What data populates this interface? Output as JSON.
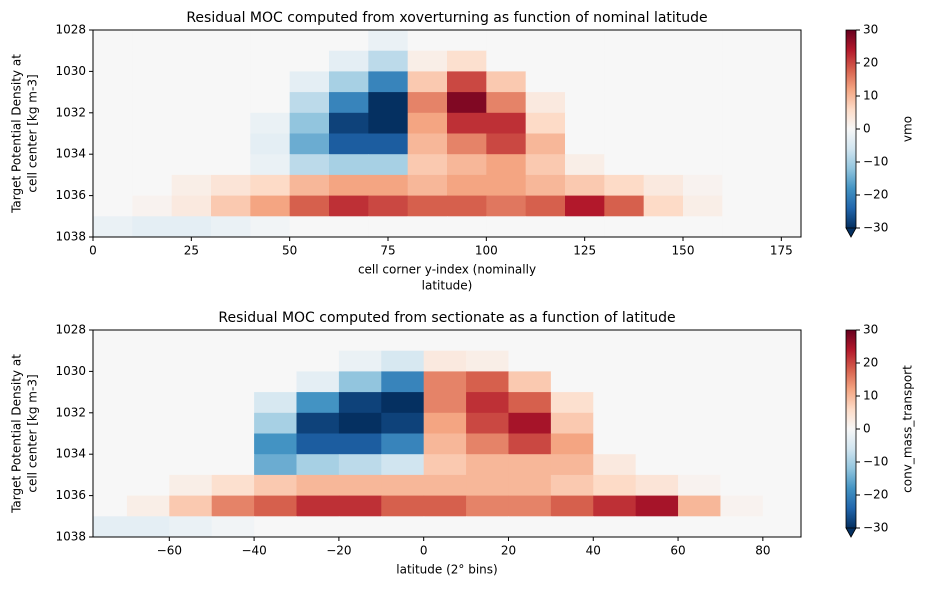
{
  "chart_data": [
    {
      "type": "heatmap",
      "title": "Residual MOC computed from xoverturning as function of nominal latitude",
      "xlabel": [
        "cell corner y-index (nominally",
        "latitude)"
      ],
      "ylabel": [
        "Target Potential Density at",
        "cell center [kg m-3]"
      ],
      "x": [
        5,
        15,
        25,
        35,
        45,
        55,
        65,
        75,
        85,
        95,
        105,
        115,
        125,
        135,
        145,
        155,
        165,
        175
      ],
      "y": [
        1028.5,
        1029.5,
        1030.5,
        1031.5,
        1032.5,
        1033.5,
        1034.5,
        1035.5,
        1036.5,
        1037.5
      ],
      "z": [
        [
          0,
          0,
          0,
          0,
          0,
          0,
          0,
          -2,
          0,
          0,
          0,
          0,
          0,
          0,
          0,
          0,
          0,
          0
        ],
        [
          0,
          0,
          0,
          0,
          0,
          0,
          -3,
          -8,
          2,
          5,
          0,
          0,
          0,
          0,
          0,
          0,
          0,
          0
        ],
        [
          0,
          0,
          0,
          0,
          0,
          -3,
          -10,
          -20,
          8,
          20,
          8,
          0,
          0,
          0,
          0,
          0,
          0,
          0
        ],
        [
          0,
          0,
          0,
          0,
          0,
          -8,
          -20,
          -30,
          15,
          28,
          15,
          3,
          0,
          0,
          0,
          0,
          0,
          0
        ],
        [
          0,
          0,
          0,
          0,
          -2,
          -12,
          -28,
          -30,
          12,
          22,
          22,
          6,
          0,
          0,
          0,
          0,
          0,
          0
        ],
        [
          0,
          0,
          0,
          0,
          -3,
          -15,
          -25,
          -25,
          10,
          15,
          20,
          10,
          0,
          0,
          0,
          0,
          0,
          0
        ],
        [
          0,
          0,
          0,
          0,
          -2,
          -8,
          -10,
          -10,
          8,
          10,
          12,
          8,
          2,
          0,
          0,
          0,
          0,
          0
        ],
        [
          0,
          0,
          2,
          4,
          6,
          10,
          12,
          12,
          10,
          12,
          12,
          10,
          8,
          6,
          3,
          1,
          0,
          0
        ],
        [
          0,
          1,
          3,
          8,
          12,
          18,
          22,
          20,
          18,
          18,
          16,
          18,
          24,
          18,
          6,
          2,
          0,
          0
        ],
        [
          -2,
          -3,
          -3,
          -2,
          -1,
          0,
          0,
          0,
          0,
          0,
          0,
          0,
          0,
          0,
          0,
          0,
          0,
          0
        ]
      ],
      "xlim": [
        0,
        180
      ],
      "xticks": [
        0,
        25,
        50,
        75,
        100,
        125,
        150,
        175
      ],
      "ylim": [
        1038,
        1028
      ],
      "yticks": [
        1028,
        1030,
        1032,
        1034,
        1036,
        1038
      ],
      "clim": [
        -30,
        30
      ],
      "cticks": [
        {
          "value": -30,
          "label": "−30"
        },
        {
          "value": -20,
          "label": "−20"
        },
        {
          "value": -10,
          "label": "−10"
        },
        0,
        10,
        20,
        30
      ],
      "clabel": "vmo",
      "cmap": [
        "#053061",
        "#2166ac",
        "#4393c3",
        "#92c5de",
        "#d1e5f0",
        "#f7f7f7",
        "#fddbc7",
        "#f4a582",
        "#d6604d",
        "#b2182b",
        "#67001f"
      ]
    },
    {
      "type": "heatmap",
      "title": "Residual MOC computed from sectionate as a function of latitude",
      "xlabel": [
        "latitude (2° bins)"
      ],
      "ylabel": [
        "Target Potential Density at",
        "cell center [kg m-3]"
      ],
      "x": [
        -75,
        -65,
        -55,
        -45,
        -35,
        -25,
        -15,
        -5,
        5,
        15,
        25,
        35,
        45,
        55,
        65,
        75,
        85
      ],
      "y": [
        1028.5,
        1029.5,
        1030.5,
        1031.5,
        1032.5,
        1033.5,
        1034.5,
        1035.5,
        1036.5,
        1037.5
      ],
      "z": [
        [
          0,
          0,
          0,
          0,
          0,
          0,
          0,
          0,
          0,
          0,
          0,
          0,
          0,
          0,
          0,
          0,
          0
        ],
        [
          0,
          0,
          0,
          0,
          0,
          0,
          -2,
          -5,
          3,
          2,
          0,
          0,
          0,
          0,
          0,
          0,
          0
        ],
        [
          0,
          0,
          0,
          0,
          0,
          -3,
          -12,
          -20,
          15,
          18,
          8,
          0,
          0,
          0,
          0,
          0,
          0
        ],
        [
          0,
          0,
          0,
          0,
          -5,
          -18,
          -28,
          -30,
          15,
          22,
          18,
          5,
          0,
          0,
          0,
          0,
          0
        ],
        [
          0,
          0,
          0,
          0,
          -10,
          -28,
          -30,
          -28,
          12,
          20,
          25,
          8,
          0,
          0,
          0,
          0,
          0
        ],
        [
          0,
          0,
          0,
          0,
          -18,
          -25,
          -25,
          -20,
          10,
          15,
          20,
          12,
          0,
          0,
          0,
          0,
          0
        ],
        [
          0,
          0,
          0,
          0,
          -15,
          -10,
          -8,
          -6,
          8,
          10,
          10,
          10,
          3,
          0,
          0,
          0,
          0
        ],
        [
          0,
          0,
          2,
          5,
          8,
          10,
          10,
          10,
          10,
          10,
          10,
          8,
          6,
          4,
          1,
          0,
          0
        ],
        [
          0,
          2,
          8,
          15,
          18,
          22,
          22,
          18,
          18,
          15,
          15,
          18,
          22,
          25,
          10,
          1,
          0
        ],
        [
          -3,
          -3,
          -2,
          -1,
          0,
          0,
          0,
          0,
          0,
          0,
          0,
          0,
          0,
          0,
          0,
          0,
          0
        ]
      ],
      "xlim": [
        -78,
        89
      ],
      "xticks": [
        {
          "value": -60,
          "label": "−60"
        },
        {
          "value": -40,
          "label": "−40"
        },
        {
          "value": -20,
          "label": "−20"
        },
        0,
        20,
        40,
        60,
        80
      ],
      "ylim": [
        1038,
        1028
      ],
      "yticks": [
        1028,
        1030,
        1032,
        1034,
        1036,
        1038
      ],
      "clim": [
        -30,
        30
      ],
      "cticks": [
        {
          "value": -30,
          "label": "−30"
        },
        {
          "value": -20,
          "label": "−20"
        },
        {
          "value": -10,
          "label": "−10"
        },
        0,
        10,
        20,
        30
      ],
      "clabel": "conv_mass_transport",
      "cmap": [
        "#053061",
        "#2166ac",
        "#4393c3",
        "#92c5de",
        "#d1e5f0",
        "#f7f7f7",
        "#fddbc7",
        "#f4a582",
        "#d6604d",
        "#b2182b",
        "#67001f"
      ]
    }
  ]
}
